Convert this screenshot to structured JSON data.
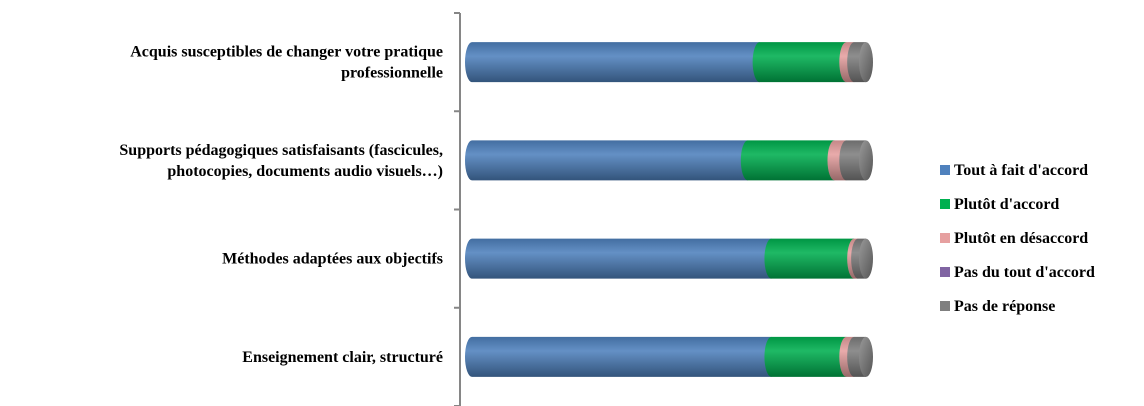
{
  "chart_data": {
    "type": "bar",
    "orientation": "horizontal",
    "stacked": true,
    "percent_stacked": true,
    "style": "3d-cylinder",
    "categories": [
      "Acquis susceptibles de changer votre pratique professionnelle",
      "Supports pédagogiques satisfaisants (fascicules, photocopies, documents audio visuels…)",
      "Méthodes adaptées aux objectifs",
      "Enseignement clair, structuré"
    ],
    "category_label_lines": [
      [
        "Acquis susceptibles de changer votre pratique",
        "professionnelle"
      ],
      [
        "Supports pédagogiques satisfaisants (fascicules,",
        "photocopies, documents audio visuels…)"
      ],
      [
        "Méthodes adaptées aux objectifs"
      ],
      [
        "Enseignement clair, structuré"
      ]
    ],
    "series": [
      {
        "name": "Tout à fait d'accord",
        "color": "#4F81BD",
        "values": [
          73,
          70,
          76,
          76
        ]
      },
      {
        "name": "Plutôt d'accord",
        "color": "#00B050",
        "values": [
          22,
          22,
          21,
          19
        ]
      },
      {
        "name": "Plutôt en désaccord",
        "color": "#E6A0A0",
        "values": [
          2,
          3,
          1,
          2
        ]
      },
      {
        "name": "Pas du tout d'accord",
        "color": "#8064A2",
        "values": [
          0,
          0,
          0,
          0
        ]
      },
      {
        "name": "Pas de réponse",
        "color": "#7F7F7F",
        "values": [
          3,
          5,
          2,
          3
        ]
      }
    ],
    "xlim": [
      0,
      100
    ],
    "grid": false,
    "legend_position": "right"
  }
}
